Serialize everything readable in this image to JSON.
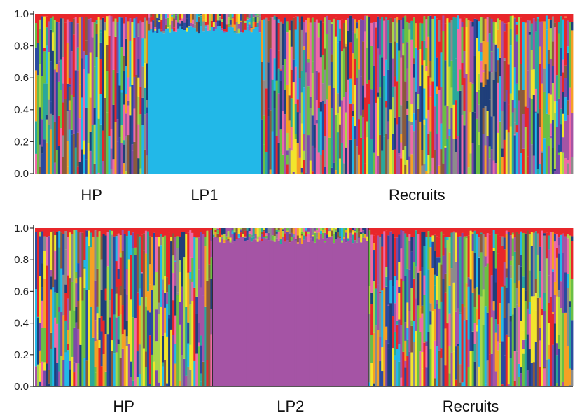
{
  "palette": {
    "red": "#e8262a",
    "sky_blue": "#22b8e8",
    "purple": "#a554a5",
    "orange": "#f5a025",
    "green": "#6abf45",
    "dark_blue": "#2a4aa0",
    "yellow": "#f2e52c",
    "pink": "#ee6aa7",
    "teal": "#2aa79b",
    "brown": "#8a5a3c",
    "violet": "#7b4aa8",
    "light_green": "#a8d64a",
    "navy": "#1f3f7a",
    "gray": "#8c8c8c"
  },
  "chart_data": [
    {
      "type": "bar",
      "stacked": true,
      "ylim": [
        0,
        1.0
      ],
      "yticks": [
        "0.0",
        "0.2",
        "0.4",
        "0.6",
        "0.8",
        "1.0"
      ],
      "groups": [
        {
          "label": "HP",
          "share": 0.21,
          "dominant": null
        },
        {
          "label": "LP1",
          "share": 0.21,
          "dominant": "sky_blue",
          "dominant_fraction": 0.93
        },
        {
          "label": "Recruits",
          "share": 0.58,
          "dominant": null
        }
      ]
    },
    {
      "type": "bar",
      "stacked": true,
      "ylim": [
        0,
        1.0
      ],
      "yticks": [
        "0.0",
        "0.2",
        "0.4",
        "0.6",
        "0.8",
        "1.0"
      ],
      "groups": [
        {
          "label": "HP",
          "share": 0.33,
          "dominant": null
        },
        {
          "label": "LP2",
          "share": 0.29,
          "dominant": "purple",
          "dominant_fraction": 0.95
        },
        {
          "label": "Recruits",
          "share": 0.38,
          "dominant": null
        }
      ]
    }
  ]
}
